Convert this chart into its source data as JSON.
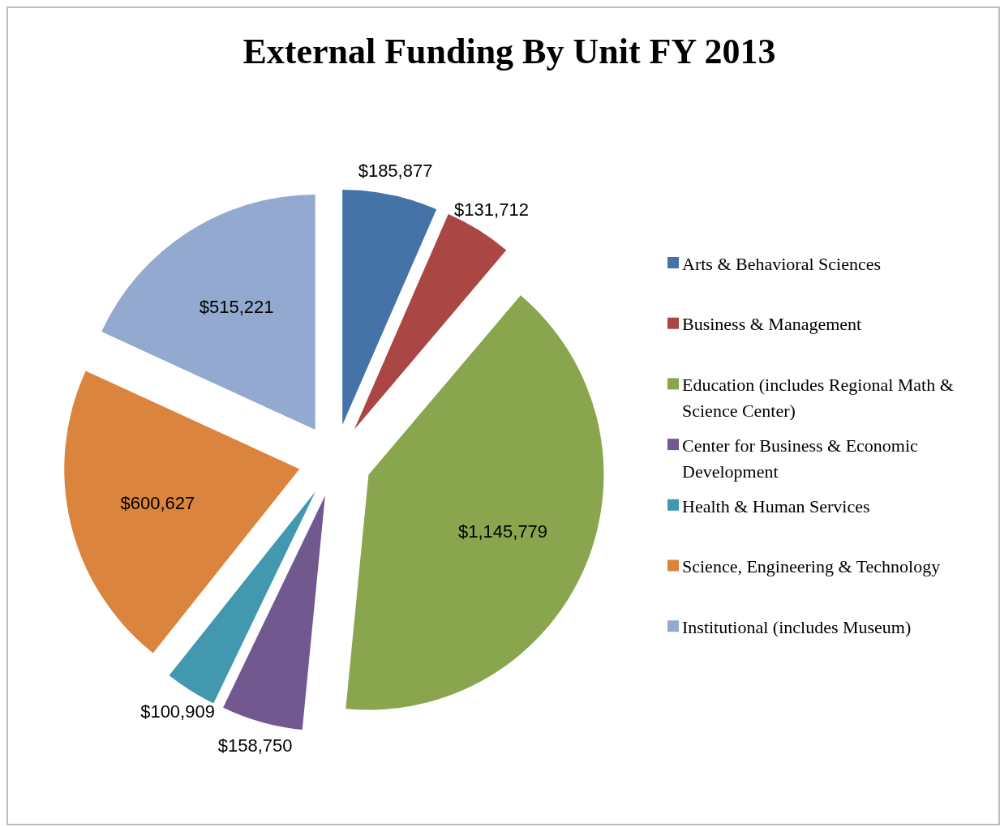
{
  "chart_data": {
    "type": "pie",
    "title": "External Funding By Unit FY 2013",
    "categories": [
      "Arts & Behavioral Sciences",
      "Business & Management",
      "Education (includes Regional Math & Science Center)",
      "Center for Business & Economic Development",
      "Health & Human Services",
      "Science, Engineering & Technology",
      "Institutional (includes Museum)"
    ],
    "values": [
      185877,
      131712,
      1145779,
      158750,
      100909,
      600627,
      515221
    ],
    "value_labels": [
      "$185,877",
      "$131,712",
      "$1,145,779",
      "$158,750",
      "$100,909",
      "$600,627",
      "$515,221"
    ],
    "colors": [
      "#4572a7",
      "#aa4643",
      "#89a54e",
      "#71588f",
      "#4198af",
      "#db843d",
      "#93a9cf"
    ],
    "legend": "right"
  }
}
